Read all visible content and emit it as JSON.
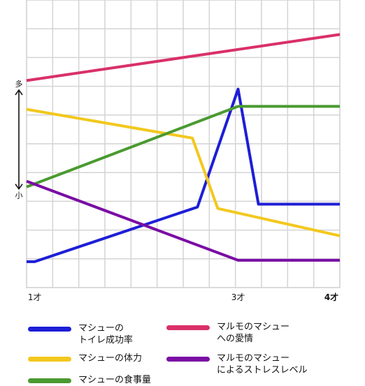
{
  "chart_data": {
    "type": "line",
    "x_ticks": [
      {
        "x": 1,
        "label": "1才",
        "bold": false
      },
      {
        "x": 3,
        "label": "3才",
        "bold": false
      },
      {
        "x": 4,
        "label": "4才",
        "bold": true
      }
    ],
    "xlim": [
      0.92,
      4
    ],
    "ylim": [
      0,
      10
    ],
    "y_axis": {
      "high_label": "多",
      "low_label": "小",
      "high_value": 6.7,
      "low_value": 3.6
    },
    "grid": true,
    "series": [
      {
        "name": "マルモのマシュー\nへの愛情",
        "color": "#d9306a",
        "points": [
          [
            0.92,
            7.2
          ],
          [
            4.0,
            8.8
          ]
        ]
      },
      {
        "name": "マシューの\nトイレ成功率",
        "color": "#1e1ed6",
        "points": [
          [
            0.92,
            0.9
          ],
          [
            1.0,
            0.9
          ],
          [
            2.6,
            2.8
          ],
          [
            3.0,
            6.9
          ],
          [
            3.2,
            2.9
          ],
          [
            4.0,
            2.9
          ]
        ]
      },
      {
        "name": "マシューの体力",
        "color": "#f2c81e",
        "points": [
          [
            0.92,
            6.2
          ],
          [
            2.55,
            5.2
          ],
          [
            2.8,
            2.75
          ],
          [
            4.0,
            1.8
          ]
        ]
      },
      {
        "name": "マシューの食事量",
        "color": "#4a9a30",
        "points": [
          [
            0.92,
            3.5
          ],
          [
            3.0,
            6.3
          ],
          [
            4.0,
            6.3
          ]
        ]
      },
      {
        "name": "マルモのマシュー\nによるストレスレベル",
        "color": "#7a0ea4",
        "points": [
          [
            0.92,
            3.7
          ],
          [
            3.0,
            0.95
          ],
          [
            4.0,
            0.95
          ]
        ]
      }
    ],
    "legend_order": [
      1,
      0,
      2,
      4,
      3
    ]
  }
}
